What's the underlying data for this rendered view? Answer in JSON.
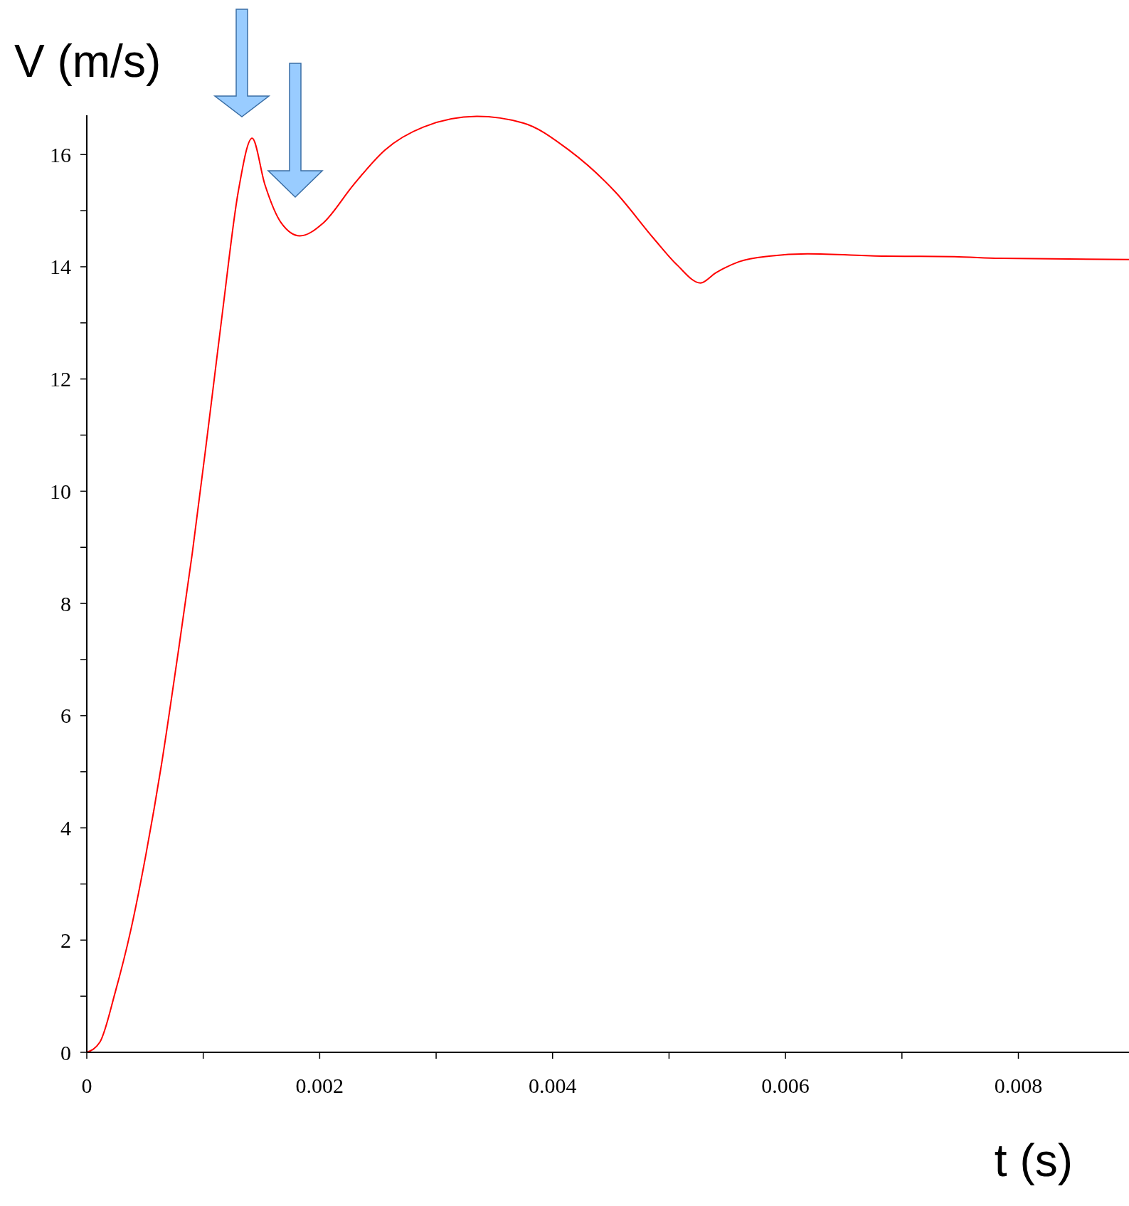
{
  "chart_data": {
    "type": "line",
    "xlabel": "t (s)",
    "ylabel": "V (m/s)",
    "x": [
      0,
      0.000112,
      0.000244,
      0.000377,
      0.000509,
      0.00064,
      0.000773,
      0.000905,
      0.00104,
      0.00117,
      0.0013,
      0.00142,
      0.00153,
      0.00167,
      0.00183,
      0.00203,
      0.00229,
      0.00256,
      0.00289,
      0.00335,
      0.00375,
      0.00414,
      0.00454,
      0.00487,
      0.00507,
      0.00527,
      0.0054,
      0.0056,
      0.00586,
      0.00619,
      0.00685,
      0.00745,
      0.00784,
      0.00895
    ],
    "series": [
      {
        "color": "#ff0000",
        "values": [
          0,
          0.18,
          1.07,
          2.17,
          3.54,
          5.11,
          6.96,
          8.88,
          11.08,
          13.27,
          15.33,
          16.29,
          15.46,
          14.78,
          14.55,
          14.78,
          15.46,
          16.08,
          16.49,
          16.68,
          16.56,
          16.08,
          15.33,
          14.5,
          14.03,
          13.71,
          13.89,
          14.09,
          14.19,
          14.23,
          14.19,
          14.18,
          14.15,
          14.13
        ]
      }
    ],
    "xlim": [
      0,
      0.00895
    ],
    "ylim": [
      0,
      16.7
    ],
    "xticks": [
      0,
      {
        "value": 0.001,
        "label": null
      },
      0.002,
      {
        "value": 0.003,
        "label": null
      },
      0.004,
      {
        "value": 0.005,
        "label": null
      },
      0.006,
      {
        "value": 0.007,
        "label": null
      },
      0.008
    ],
    "yticks": [
      0,
      {
        "value": 1,
        "label": null
      },
      2,
      {
        "value": 3,
        "label": null
      },
      4,
      {
        "value": 5,
        "label": null
      },
      6,
      {
        "value": 7,
        "label": null
      },
      8,
      {
        "value": 9,
        "label": null
      },
      10,
      {
        "value": 11,
        "label": null
      },
      12,
      {
        "value": 13,
        "label": null
      },
      14,
      {
        "value": 15,
        "label": null
      },
      16
    ],
    "grid": false,
    "line_style": "solid"
  }
}
